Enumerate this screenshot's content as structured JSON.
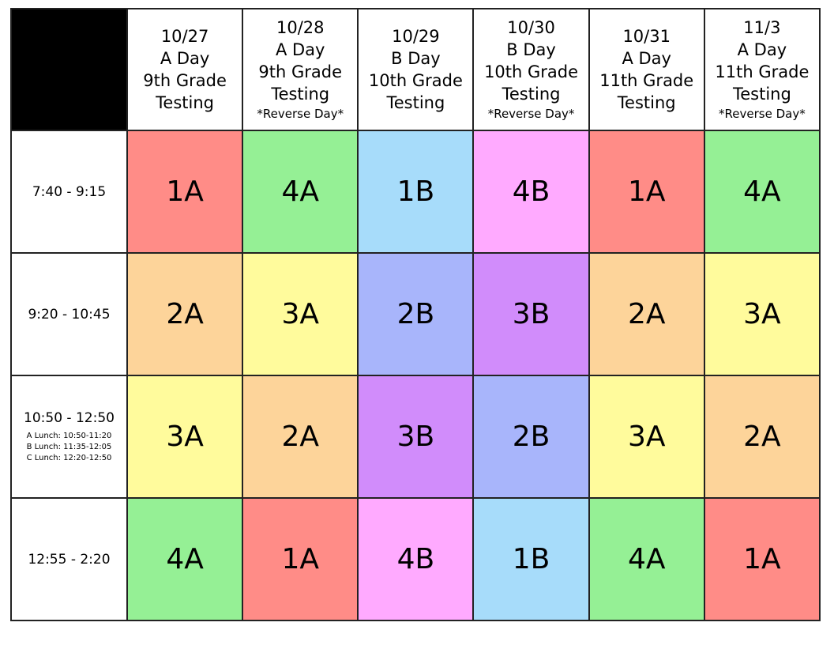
{
  "columns": [
    {
      "date": "10/27",
      "day": "A Day",
      "grade": "9th Grade",
      "label": "Testing"
    },
    {
      "date": "10/28",
      "day": "A Day",
      "grade": "9th Grade",
      "label": "Testing",
      "note": "*Reverse Day*"
    },
    {
      "date": "10/29",
      "day": "B Day",
      "grade": "10th Grade",
      "label": "Testing"
    },
    {
      "date": "10/30",
      "day": "B Day",
      "grade": "10th Grade",
      "label": "Testing",
      "note": "*Reverse Day*"
    },
    {
      "date": "10/31",
      "day": "A Day",
      "grade": "11th Grade",
      "label": "Testing"
    },
    {
      "date": "11/3",
      "day": "A Day",
      "grade": "11th Grade",
      "label": "Testing",
      "note": "*Reverse Day*"
    }
  ],
  "rows": [
    {
      "time": "7:40 - 9:15",
      "cells": [
        {
          "label": "1A",
          "color": "#ff8c87"
        },
        {
          "label": "4A",
          "color": "#95f095"
        },
        {
          "label": "1B",
          "color": "#a7dcfa"
        },
        {
          "label": "4B",
          "color": "#ffaaff"
        },
        {
          "label": "1A",
          "color": "#ff8c87"
        },
        {
          "label": "4A",
          "color": "#95f095"
        }
      ]
    },
    {
      "time": "9:20 - 10:45",
      "cells": [
        {
          "label": "2A",
          "color": "#fdd49a"
        },
        {
          "label": "3A",
          "color": "#fffb9c"
        },
        {
          "label": "2B",
          "color": "#a8b5fb"
        },
        {
          "label": "3B",
          "color": "#d18cfb"
        },
        {
          "label": "2A",
          "color": "#fdd49a"
        },
        {
          "label": "3A",
          "color": "#fffb9c"
        }
      ]
    },
    {
      "time": "10:50 - 12:50",
      "lunches": [
        "A Lunch:  10:50-11:20",
        "B Lunch: 11:35-12:05",
        "C Lunch: 12:20-12:50"
      ],
      "cells": [
        {
          "label": "3A",
          "color": "#fffb9c"
        },
        {
          "label": "2A",
          "color": "#fdd49a"
        },
        {
          "label": "3B",
          "color": "#d18cfb"
        },
        {
          "label": "2B",
          "color": "#a8b5fb"
        },
        {
          "label": "3A",
          "color": "#fffb9c"
        },
        {
          "label": "2A",
          "color": "#fdd49a"
        }
      ]
    },
    {
      "time": "12:55 - 2:20",
      "cells": [
        {
          "label": "4A",
          "color": "#95f095"
        },
        {
          "label": "1A",
          "color": "#ff8c87"
        },
        {
          "label": "4B",
          "color": "#ffaaff"
        },
        {
          "label": "1B",
          "color": "#a7dcfa"
        },
        {
          "label": "4A",
          "color": "#95f095"
        },
        {
          "label": "1A",
          "color": "#ff8c87"
        }
      ]
    }
  ]
}
